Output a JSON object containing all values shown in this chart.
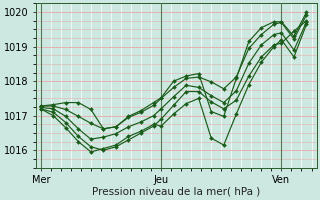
{
  "xlabel": "Pression niveau de la mer( hPa )",
  "background_color": "#cce8e0",
  "line_color": "#1a5c1a",
  "ylim": [
    1015.5,
    1020.25
  ],
  "yticks": [
    1016,
    1017,
    1018,
    1019,
    1020
  ],
  "xtick_labels": [
    "Mer",
    "Jeu",
    "Ven"
  ],
  "xtick_positions": [
    0,
    48,
    96
  ],
  "xlim": [
    -2,
    110
  ],
  "vgrid_color": "#ffffff",
  "hgrid_color": "#e8b0b0",
  "vline_color": "#557755",
  "lines": [
    [
      0,
      1017.2,
      5,
      1017.1,
      10,
      1016.8,
      15,
      1016.4,
      20,
      1016.1,
      25,
      1016.0,
      30,
      1016.1,
      35,
      1016.3,
      40,
      1016.5,
      45,
      1016.7,
      48,
      1016.9,
      53,
      1017.3,
      58,
      1017.7,
      63,
      1017.7,
      68,
      1017.4,
      73,
      1017.2,
      78,
      1017.45,
      83,
      1018.15,
      88,
      1018.7,
      93,
      1019.05,
      96,
      1019.1,
      101,
      1019.45,
      106,
      1019.75
    ],
    [
      0,
      1017.2,
      5,
      1017.0,
      10,
      1016.65,
      15,
      1016.25,
      20,
      1015.95,
      25,
      1016.05,
      30,
      1016.15,
      35,
      1016.4,
      40,
      1016.55,
      45,
      1016.75,
      48,
      1016.7,
      53,
      1017.05,
      58,
      1017.35,
      63,
      1017.5,
      68,
      1016.35,
      73,
      1016.15,
      78,
      1017.05,
      83,
      1017.9,
      88,
      1018.55,
      93,
      1019.0,
      96,
      1019.2,
      101,
      1018.7,
      106,
      1019.65
    ],
    [
      0,
      1017.28,
      5,
      1017.28,
      10,
      1017.18,
      15,
      1016.98,
      20,
      1016.78,
      25,
      1016.62,
      30,
      1016.68,
      35,
      1016.95,
      40,
      1017.1,
      45,
      1017.3,
      48,
      1017.5,
      53,
      1017.82,
      58,
      1018.08,
      63,
      1018.12,
      68,
      1017.98,
      73,
      1017.78,
      78,
      1018.12,
      83,
      1018.95,
      88,
      1019.35,
      93,
      1019.65,
      96,
      1019.7,
      101,
      1019.22,
      106,
      1019.92
    ],
    [
      0,
      1017.24,
      5,
      1017.2,
      10,
      1016.98,
      15,
      1016.62,
      20,
      1016.32,
      25,
      1016.38,
      30,
      1016.48,
      35,
      1016.68,
      40,
      1016.82,
      45,
      1017.0,
      48,
      1017.2,
      53,
      1017.55,
      58,
      1017.88,
      63,
      1017.82,
      68,
      1017.58,
      73,
      1017.38,
      78,
      1017.72,
      83,
      1018.52,
      88,
      1019.05,
      93,
      1019.35,
      96,
      1019.4,
      101,
      1018.9,
      106,
      1019.72
    ],
    [
      0,
      1017.28,
      5,
      1017.32,
      10,
      1017.38,
      15,
      1017.38,
      20,
      1017.18,
      25,
      1016.62,
      30,
      1016.68,
      35,
      1016.98,
      40,
      1017.15,
      45,
      1017.38,
      48,
      1017.52,
      53,
      1018.0,
      58,
      1018.15,
      63,
      1018.22,
      68,
      1017.12,
      73,
      1016.98,
      78,
      1018.08,
      83,
      1019.15,
      88,
      1019.55,
      93,
      1019.72,
      96,
      1019.72,
      101,
      1019.3,
      106,
      1020.0
    ]
  ],
  "marker": "D",
  "marker_size": 2.0,
  "linewidth": 0.85
}
